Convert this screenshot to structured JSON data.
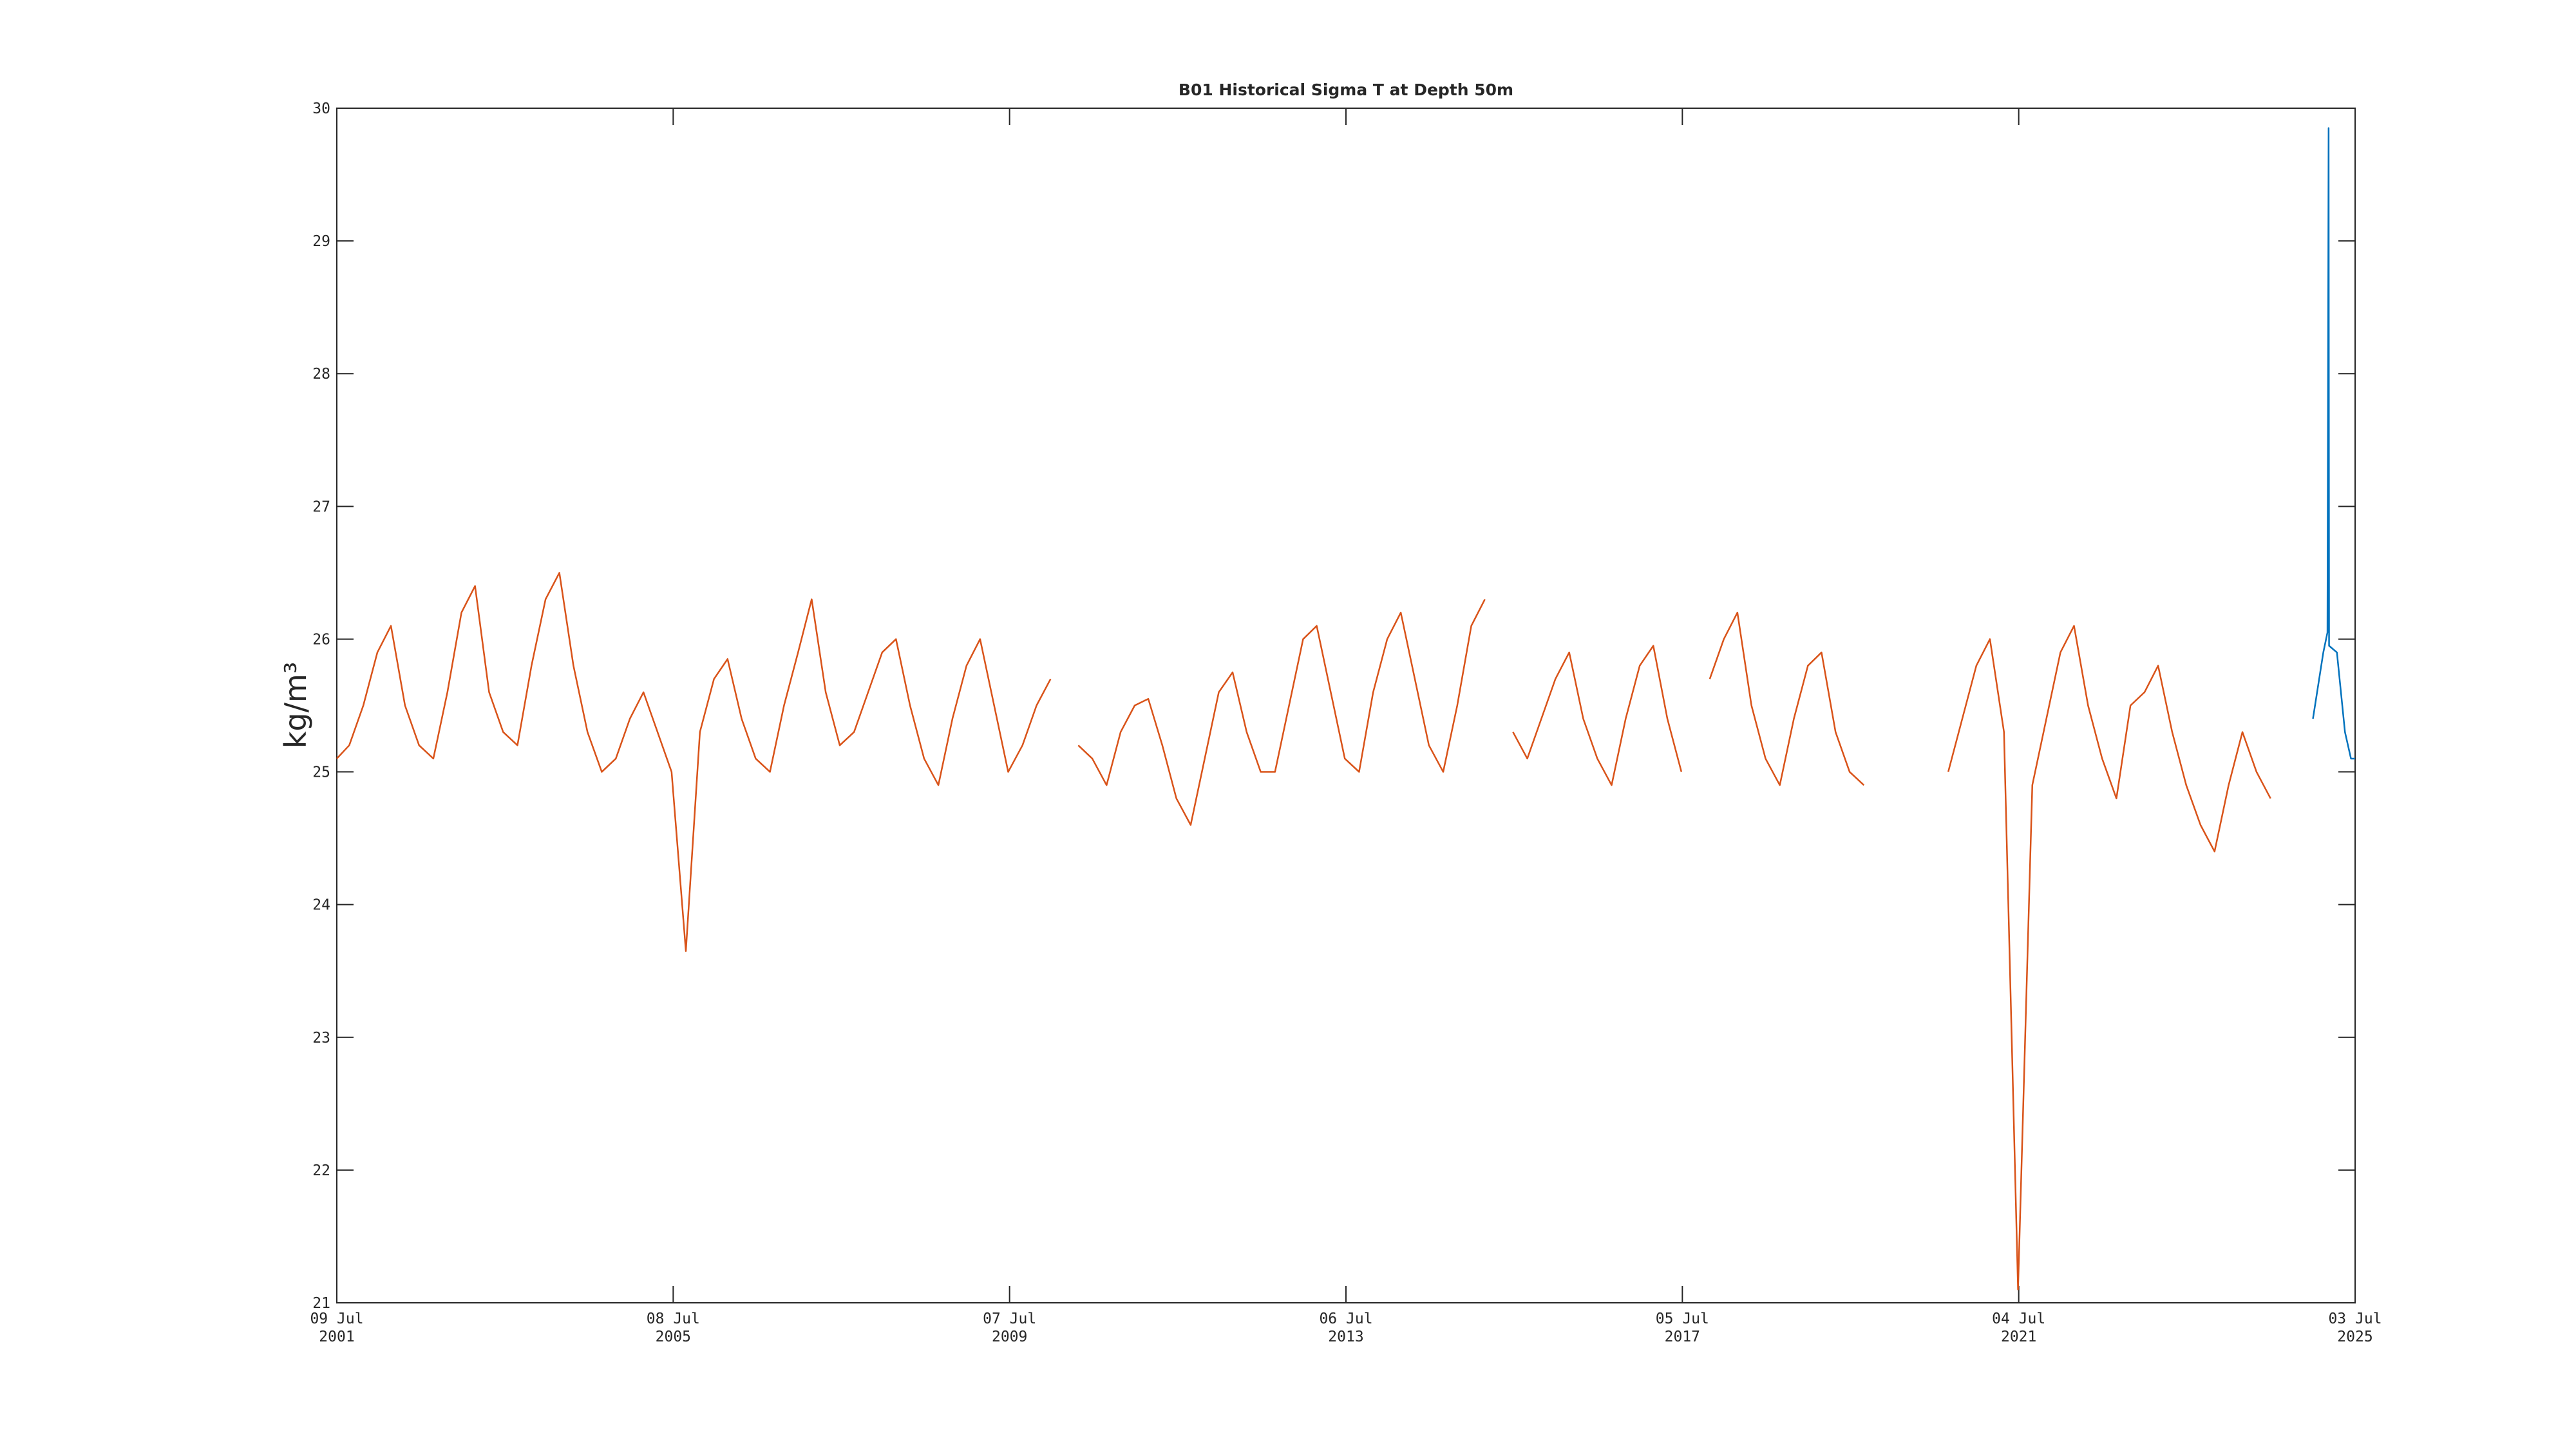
{
  "chart_data": {
    "type": "line",
    "title": "B01 Historical Sigma T at Depth 50m",
    "ylabel": "kg/m³",
    "ylim": [
      21,
      30
    ],
    "yticks": [
      21,
      22,
      23,
      24,
      25,
      26,
      27,
      28,
      29,
      30
    ],
    "xlim": [
      "2001-07-09",
      "2025-07-03"
    ],
    "xticks": [
      {
        "value": "2001-07-09",
        "label": [
          "09 Jul",
          "2001"
        ]
      },
      {
        "value": "2005-07-08",
        "label": [
          "08 Jul",
          "2005"
        ]
      },
      {
        "value": "2009-07-07",
        "label": [
          "07 Jul",
          "2009"
        ]
      },
      {
        "value": "2013-07-06",
        "label": [
          "06 Jul",
          "2013"
        ]
      },
      {
        "value": "2017-07-05",
        "label": [
          "05 Jul",
          "2017"
        ]
      },
      {
        "value": "2021-07-04",
        "label": [
          "04 Jul",
          "2021"
        ]
      },
      {
        "value": "2025-07-03",
        "label": [
          "03 Jul",
          "2025"
        ]
      }
    ],
    "series": [
      {
        "color": "#D95319",
        "x": [
          "2001-07-09",
          "2001-09-01",
          "2001-11-01",
          "2002-01-01",
          "2002-03-01",
          "2002-05-01",
          "2002-07-01",
          "2002-09-01",
          "2002-11-01",
          "2003-01-01",
          "2003-03-01",
          "2003-05-01",
          "2003-07-01",
          "2003-09-01",
          "2003-11-01",
          "2004-01-01",
          "2004-03-01",
          "2004-05-01",
          "2004-07-01",
          "2004-09-01",
          "2004-11-01",
          "2005-01-01",
          "2005-03-01",
          "2005-05-01",
          "2005-07-01",
          "2005-09-01",
          "2005-11-01",
          "2006-01-01",
          "2006-03-01",
          "2006-05-01",
          "2006-07-01",
          "2006-09-01",
          "2006-11-01",
          "2007-01-01",
          "2007-03-01",
          "2007-05-01",
          "2007-07-01",
          "2007-09-01",
          "2007-11-01",
          "2008-01-01",
          "2008-03-01",
          "2008-05-01",
          "2008-07-01",
          "2008-09-01",
          "2008-11-01",
          "2009-01-01",
          "2009-03-01",
          "2009-05-01",
          "2009-07-01",
          "2009-09-01",
          "2009-11-01",
          "2010-01-01",
          "2010-03-01",
          "2010-05-01",
          "2010-07-01",
          "2010-09-01",
          "2010-11-01",
          "2011-01-01",
          "2011-03-01",
          "2011-05-01",
          "2011-07-01",
          "2011-09-01",
          "2011-11-01",
          "2012-01-01",
          "2012-03-01",
          "2012-05-01",
          "2012-07-01",
          "2012-09-01",
          "2012-11-01",
          "2013-01-01",
          "2013-03-01",
          "2013-05-01",
          "2013-07-01",
          "2013-09-01",
          "2013-11-01",
          "2014-01-01",
          "2014-03-01",
          "2014-05-01",
          "2014-07-01",
          "2014-09-01",
          "2014-11-01",
          "2015-01-01",
          "2015-03-01",
          "2015-05-01",
          "2015-07-01",
          "2015-09-01",
          "2015-11-01",
          "2016-01-01",
          "2016-03-01",
          "2016-05-01",
          "2016-07-01",
          "2016-09-01",
          "2016-11-01",
          "2017-01-01",
          "2017-03-01",
          "2017-05-01",
          "2017-07-01",
          "2017-09-01",
          "2017-11-01",
          "2018-01-01",
          "2018-03-01",
          "2018-05-01",
          "2018-07-01",
          "2018-09-01",
          "2018-11-01",
          "2019-01-01",
          "2019-03-01",
          "2019-05-01",
          "2019-07-01",
          "2019-09-01",
          "2019-11-01",
          "2020-01-01",
          "2020-03-01",
          "2020-05-01",
          "2020-07-01",
          "2020-09-01",
          "2020-11-01",
          "2021-01-01",
          "2021-03-01",
          "2021-05-01",
          "2021-07-01",
          "2021-09-01",
          "2021-11-01",
          "2022-01-01",
          "2022-03-01",
          "2022-05-01",
          "2022-07-01",
          "2022-09-01",
          "2022-11-01",
          "2023-01-01",
          "2023-03-01",
          "2023-05-01",
          "2023-07-01",
          "2023-09-01",
          "2023-11-01",
          "2024-01-01",
          "2024-03-01",
          "2024-05-01",
          "2024-07-01",
          "2024-09-01"
        ],
        "values": [
          25.1,
          25.2,
          25.5,
          25.9,
          26.1,
          25.5,
          25.2,
          25.1,
          25.6,
          26.2,
          26.4,
          25.6,
          25.3,
          25.2,
          25.8,
          26.3,
          26.5,
          25.8,
          25.3,
          25.0,
          25.1,
          25.4,
          25.6,
          25.3,
          25.0,
          23.65,
          25.3,
          25.7,
          25.85,
          25.4,
          25.1,
          25.0,
          25.5,
          25.9,
          26.3,
          25.6,
          25.2,
          25.3,
          25.6,
          25.9,
          26.0,
          25.5,
          25.1,
          24.9,
          25.4,
          25.8,
          26.0,
          25.5,
          25.0,
          25.2,
          25.5,
          25.7,
          null,
          25.2,
          25.1,
          24.9,
          25.3,
          25.5,
          25.55,
          25.2,
          24.8,
          24.6,
          25.1,
          25.6,
          25.75,
          25.3,
          25.0,
          25.0,
          25.5,
          26.0,
          26.1,
          25.6,
          25.1,
          25.0,
          25.6,
          26.0,
          26.2,
          25.7,
          25.2,
          25.0,
          25.5,
          26.1,
          26.3,
          null,
          25.3,
          25.1,
          25.4,
          25.7,
          25.9,
          25.4,
          25.1,
          24.9,
          25.4,
          25.8,
          25.95,
          25.4,
          25.0,
          null,
          25.7,
          26.0,
          26.2,
          25.5,
          25.1,
          24.9,
          25.4,
          25.8,
          25.9,
          25.3,
          25.0,
          24.9,
          null,
          null,
          null,
          null,
          null,
          25.0,
          25.4,
          25.8,
          26.0,
          25.3,
          21.1,
          24.9,
          25.4,
          25.9,
          26.1,
          25.5,
          25.1,
          24.8,
          25.5,
          25.6,
          25.8,
          25.3,
          24.9,
          24.6,
          24.4,
          24.9,
          25.3,
          25.0,
          24.8,
          null
        ]
      },
      {
        "color": "#0072BD",
        "x": [
          "2025-01-01",
          "2025-02-15",
          "2025-03-05",
          "2025-03-10",
          "2025-03-12",
          "2025-04-15",
          "2025-05-20",
          "2025-06-15",
          "2025-07-03"
        ],
        "values": [
          25.4,
          25.9,
          26.05,
          29.85,
          25.95,
          25.9,
          25.3,
          25.1,
          25.1
        ]
      }
    ]
  }
}
